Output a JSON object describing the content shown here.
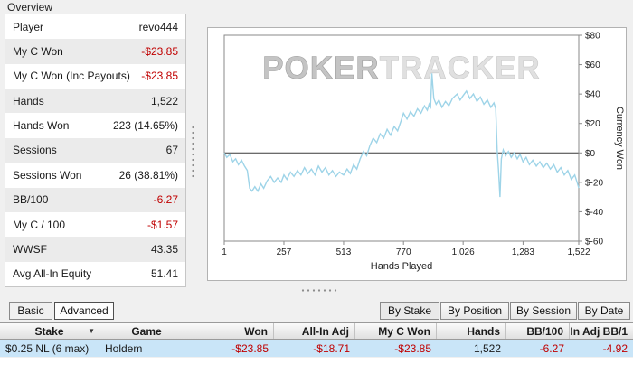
{
  "overview": {
    "title": "Overview",
    "rows": [
      {
        "label": "Player",
        "value": "revo444"
      },
      {
        "label": "My C Won",
        "value": "-$23.85"
      },
      {
        "label": "My C Won (Inc Payouts)",
        "value": "-$23.85"
      },
      {
        "label": "Hands",
        "value": "1,522"
      },
      {
        "label": "Hands Won",
        "value": "223 (14.65%)"
      },
      {
        "label": "Sessions",
        "value": "67"
      },
      {
        "label": "Sessions Won",
        "value": "26 (38.81%)"
      },
      {
        "label": "BB/100",
        "value": "-6.27"
      },
      {
        "label": "My C / 100",
        "value": "-$1.57"
      },
      {
        "label": "WWSF",
        "value": "43.35"
      },
      {
        "label": "Avg All-In Equity",
        "value": "51.41"
      }
    ]
  },
  "chart_data": {
    "type": "line",
    "title": "",
    "xlabel": "Hands Played",
    "ylabel": "Currency Won",
    "xlim": [
      1,
      1522
    ],
    "ylim": [
      -60,
      80
    ],
    "grid": false,
    "legend": "none",
    "watermark": [
      "POKER",
      "TRACKER"
    ],
    "line_color": "#9ed4e8",
    "x_ticks": [
      {
        "value": 1,
        "label": "1"
      },
      {
        "value": 257,
        "label": "257"
      },
      {
        "value": 513,
        "label": "513"
      },
      {
        "value": 770,
        "label": "770"
      },
      {
        "value": 1026,
        "label": "1,026"
      },
      {
        "value": 1283,
        "label": "1,283"
      },
      {
        "value": 1522,
        "label": "1,522"
      }
    ],
    "y_ticks": [
      {
        "value": 80,
        "label": "$80"
      },
      {
        "value": 60,
        "label": "$60"
      },
      {
        "value": 40,
        "label": "$40"
      },
      {
        "value": 20,
        "label": "$20"
      },
      {
        "value": 0,
        "label": "$0"
      },
      {
        "value": -20,
        "label": "$-20"
      },
      {
        "value": -40,
        "label": "$-40"
      },
      {
        "value": -60,
        "label": "$-60"
      }
    ],
    "series": [
      {
        "name": "Currency Won",
        "x": [
          1,
          12,
          25,
          38,
          50,
          62,
          75,
          88,
          100,
          110,
          120,
          132,
          145,
          158,
          170,
          185,
          200,
          215,
          230,
          245,
          257,
          270,
          285,
          300,
          315,
          330,
          345,
          360,
          375,
          390,
          405,
          420,
          435,
          450,
          465,
          480,
          495,
          513,
          528,
          542,
          556,
          570,
          584,
          598,
          612,
          626,
          640,
          655,
          670,
          685,
          700,
          715,
          730,
          745,
          760,
          770,
          785,
          800,
          815,
          830,
          845,
          860,
          872,
          880,
          886,
          892,
          900,
          910,
          922,
          935,
          950,
          965,
          980,
          1000,
          1013,
          1026,
          1040,
          1055,
          1070,
          1085,
          1100,
          1115,
          1130,
          1145,
          1158,
          1166,
          1172,
          1178,
          1184,
          1190,
          1198,
          1208,
          1220,
          1232,
          1245,
          1258,
          1270,
          1283,
          1296,
          1310,
          1325,
          1340,
          1355,
          1370,
          1385,
          1400,
          1415,
          1430,
          1445,
          1460,
          1475,
          1490,
          1505,
          1515,
          1522
        ],
        "y": [
          0,
          -3,
          -1,
          -6,
          -4,
          -8,
          -5,
          -9,
          -12,
          -24,
          -26,
          -23,
          -26,
          -21,
          -24,
          -19,
          -16,
          -20,
          -17,
          -20,
          -15,
          -18,
          -13,
          -16,
          -12,
          -15,
          -10,
          -14,
          -11,
          -15,
          -9,
          -13,
          -10,
          -15,
          -12,
          -16,
          -13,
          -15,
          -11,
          -14,
          -8,
          -11,
          -4,
          1,
          -2,
          5,
          10,
          7,
          13,
          10,
          16,
          12,
          18,
          15,
          22,
          27,
          23,
          28,
          25,
          30,
          27,
          32,
          29,
          33,
          30,
          54,
          37,
          33,
          36,
          31,
          35,
          32,
          37,
          40,
          36,
          39,
          42,
          37,
          40,
          35,
          38,
          33,
          36,
          31,
          34,
          30,
          2,
          -12,
          -30,
          -4,
          2,
          -2,
          1,
          -3,
          0,
          -4,
          -1,
          -6,
          -3,
          -8,
          -5,
          -9,
          -6,
          -10,
          -7,
          -11,
          -8,
          -13,
          -10,
          -15,
          -12,
          -18,
          -15,
          -20,
          -23.85
        ]
      }
    ]
  },
  "tabs": {
    "basic": "Basic",
    "advanced": "Advanced"
  },
  "group_buttons": {
    "by_stake": "By Stake",
    "by_position": "By Position",
    "by_session": "By Session",
    "by_date": "By Date"
  },
  "table": {
    "headers": [
      "Stake",
      "Game",
      "Won",
      "All-In Adj",
      "My C Won",
      "Hands",
      "BB/100",
      "-In Adj BB/1"
    ],
    "row": {
      "stake": "$0.25 NL (6 max)",
      "game": "Holdem",
      "won": "-$23.85",
      "all_in_adj": "-$18.71",
      "my_c_won": "-$23.85",
      "hands": "1,522",
      "bb_100": "-6.27",
      "all_in_adj_bb": "-4.92"
    }
  },
  "colors": {
    "negative_text": "#c00000",
    "selected_row": "#c9e5f8",
    "chart_line": "#9ed4e8",
    "background": "#f0f0f0"
  }
}
